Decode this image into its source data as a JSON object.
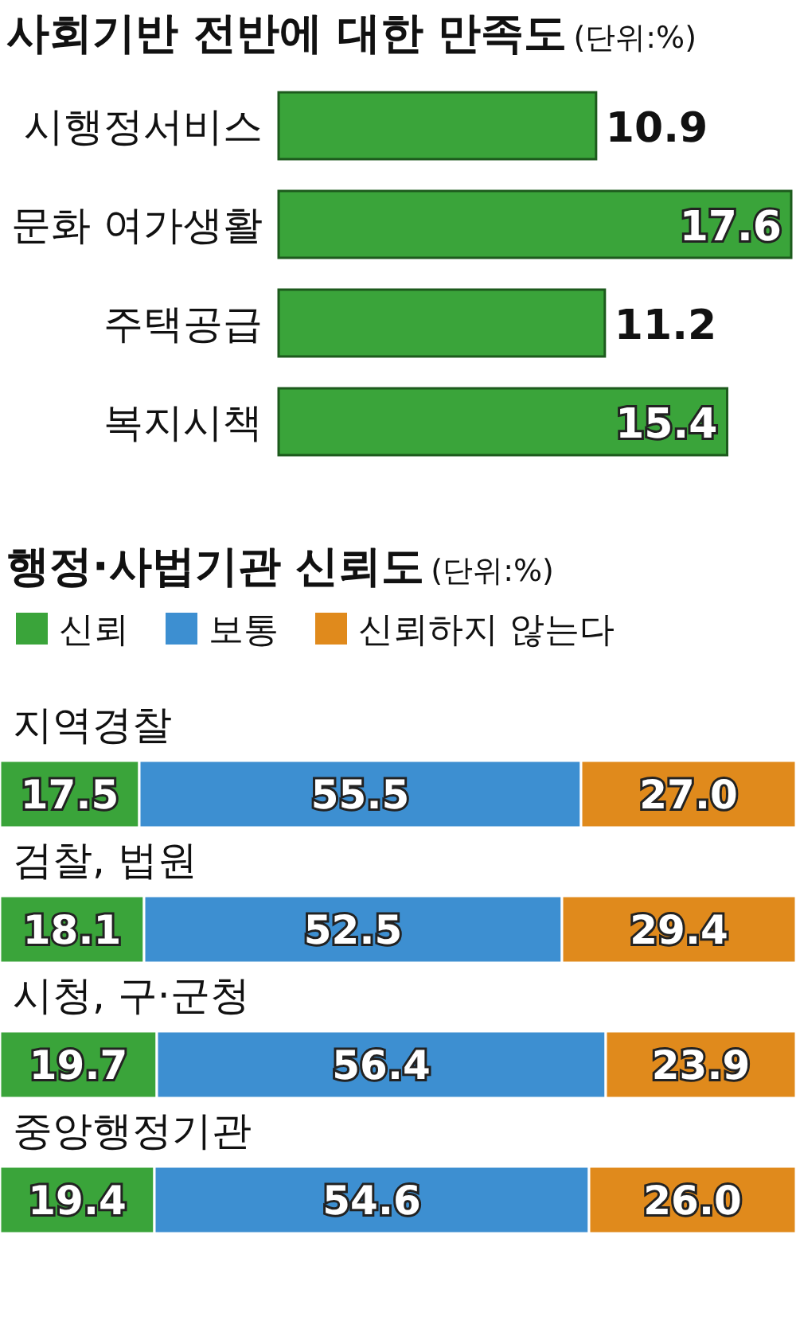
{
  "chart_data": [
    {
      "type": "bar",
      "orientation": "horizontal",
      "title": "사회기반 전반에 대한 만족도",
      "subtitle": "(단위:%)",
      "categories": [
        "시행정서비스",
        "문화 여가생활",
        "주택공급",
        "복지시책"
      ],
      "values": [
        10.9,
        17.6,
        11.2,
        15.4
      ],
      "color": "#3aa43a",
      "data_labels": true
    },
    {
      "type": "bar",
      "orientation": "horizontal",
      "stacked": true,
      "title": "행정·사법기관 신뢰도",
      "subtitle": "(단위:%)",
      "categories": [
        "지역경찰",
        "검찰, 법원",
        "시청, 구·군청",
        "중앙행정기관"
      ],
      "legend": "top",
      "series": [
        {
          "name": "신뢰",
          "color": "#3aa43a",
          "values": [
            17.5,
            18.1,
            19.7,
            19.4
          ],
          "value_labels": [
            "17.5",
            "18.1",
            "19.7",
            "19.4"
          ]
        },
        {
          "name": "보통",
          "color": "#3d8fd1",
          "values": [
            55.5,
            52.5,
            56.4,
            54.6
          ],
          "value_labels": [
            "55.5",
            "52.5",
            "56.4",
            "54.6"
          ]
        },
        {
          "name": "신뢰하지 않는다",
          "color": "#e08a1c",
          "values": [
            27.0,
            29.4,
            23.9,
            26.0
          ],
          "value_labels": [
            "27.0",
            "29.4",
            "23.9",
            "26.0"
          ]
        }
      ]
    }
  ]
}
